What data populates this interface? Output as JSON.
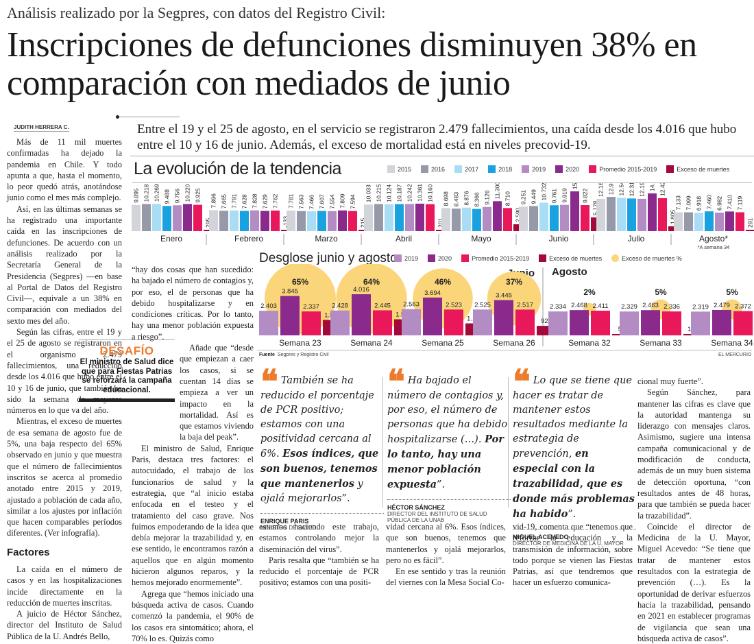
{
  "kicker": "Análisis realizado por la Segpres, con datos del Registro Civil:",
  "headline": "Inscripciones de defunciones disminuyen 38% en comparación con mediados de junio",
  "byline": "JUDITH HERRERA C.",
  "lead": "Entre el 19 y el 25 de agosto, en el servicio se registraron 2.479 fallecimientos, una caída desde los 4.016 que hubo entre el 10 y 16 de junio. Además, el exceso de mortalidad está en niveles precovid-19.",
  "colors": {
    "2015": "#d3d4da",
    "2016": "#9599a8",
    "2017": "#a9ddf5",
    "2018": "#1aa2e0",
    "2019": "#b48cc4",
    "2020": "#8a2a8c",
    "promedio": "#e8185a",
    "exceso": "#a3093a",
    "exceso_pct": "#fbd57a",
    "quote_mark": "#ee7a2b",
    "desafio": "#ee7a2b"
  },
  "body": {
    "col1": [
      "Más de 11 mil muertes confirmadas ha dejado la pandemia en Chile. Y todo apunta a que, hasta el momento, lo peor quedó atrás, anotándose junio como el mes más complejo.",
      "Así, en las últimas semanas se ha registrado una importante caída en las inscripciones de defunciones. De acuerdo con un análisis realizado por la Secretaría General de la Presidencia (Segpres) —en base al Portal de Datos del Registro Civil—, equivale a un 38% en comparación con mediados del sexto mes del año.",
      "Según las cifras, entre el 19 y el 25 de agosto se registraron en el organismo 2.479 fallecimientos, una reducción desde los 4.016 que hubo entre el 10 y 16 de junio, que también ha sido la semana de mayores números en lo que va del año.",
      "Mientras, el exceso de muertes de esa semana de agosto fue de 5%, una baja respecto del 65% observado en junio y que muestra que el número de fallecimientos inscritos se acerca al promedio anotado entre 2015 y 2019, ajustado a población de cada año, similar a los ajustes por inflación que hacen comparables períodos diferentes. (Ver infografía)."
    ],
    "subhead": "Factores",
    "col1b": [
      "La caída en el número de casos y en las hospitalizaciones incide directamente en la reducción de muertes inscritas.",
      "A juicio de Héctor Sánchez, director del Instituto de Salud Pública de la U. Andrés Bello,"
    ],
    "col2": [
      "“hay dos cosas que han sucedido: ha bajado el número de contagios y, por eso, el de personas que ha debido hospitalizarse y en condiciones críticas. Por lo tanto, hay una menor población expuesta a riesgo”.",
      "Añade que “desde que empiezan a caer los casos, si se cuentan 14 días se empieza a ver un impacto en la mortalidad. Así es que estamos viviendo la baja del peak”.",
      "El ministro de Salud, Enrique Paris, destaca tres factores: el autocuidado, el trabajo de los funcionarios de salud y la estrategia, que “al inicio estaba enfocada en el testeo y el tratamiento del caso grave. Nos fuimos empoderando de la idea que debía mejorar la trazabilidad y, en ese sentido, le encontramos razón a aquellos que en algún momento hicieron algunos reparos, y la hemos mejorado enormemente”.",
      "Agrega que “hemos iniciado una búsqueda activa de casos. Cuando comenzó la pandemia, el 90% de los casos era sintomático; ahora, el 70% lo es. Quizás como"
    ],
    "col3": [
      "estamos haciendo este trabajo, estamos controlando mejor la diseminación del virus”.",
      "Paris resalta que “también se ha reducido el porcentaje de PCR positivo; estamos con una positi-"
    ],
    "col4": [
      "vidad cercana al 6%. Esos índices, que son buenos, tenemos que mantenerlos y ojalá mejorarlos, pero no es fácil”.",
      "En ese sentido y tras la reunión del viernes con la Mesa Social Co-"
    ],
    "col5": [
      "vid-19, comenta que “tenemos que reforzar la educación y la transmisión de información, sobre todo porque se vienen las Fiestas Patrias, así que tendremos que hacer un esfuerzo comunica-"
    ],
    "col6": [
      "cional muy fuerte”.",
      "Según Sánchez, para mantener las cifras es clave que la autoridad mantenga su liderazgo con mensajes claros. Asimismo, sugiere una intensa campaña comunicacional y de modificación de conducta, además de un muy buen sistema de detección oportuna, “con resultados antes de 48 horas, para que también se pueda hacer la trazabilidad”.",
      "Coincide el director de Medicina de la U. Mayor, Miguel Acevedo: “Se tiene que tratar de mantener estos resultados con la estrategia de prevención (…). Es la oportunidad de derivar esfuerzos hacia la trazabilidad, pensando en 2021 en establecer programas de vigilancia que sean una búsqueda activa de casos”."
    ]
  },
  "desafio": {
    "title": "DESAFÍO",
    "text": "El ministro de Salud dice que para Fiestas Patrias se reforzará la campaña educacional."
  },
  "quotes": [
    {
      "pre": "También se ha reducido el porcentaje de PCR positivo; estamos con una positividad cercana al 6%. ",
      "bold": "Esos índices, que son buenos, tenemos que mantenerlos",
      "post": " y ojalá mejorarlos”.",
      "name": "ENRIQUE PARIS",
      "role": "MINISTRO DE SALUD"
    },
    {
      "pre": "Ha bajado el número de contagios y, por eso, el número de personas que ha debido hospitalizarse (…). ",
      "bold": "Por lo tanto, hay una menor población expuesta",
      "post": "”.",
      "name": "HÉCTOR SÁNCHEZ",
      "role": "DIRECTOR DEL INSTITUTO DE SALUD PÚBLICA DE LA UNAB"
    },
    {
      "pre": "Lo que se tiene que hacer es tratar de mantener estos resultados mediante la estrategia de prevención, ",
      "bold": "en especial con la trazabilidad, que es donde más problemas ha habido",
      "post": "”.",
      "name": "MIGUEL ACEVEDO",
      "role": "DIRECTOR DE MEDICINA DE LA U. MAYOR"
    }
  ],
  "infographic": {
    "source_label": "Fuente",
    "source": "Segpres y Registro Civil",
    "credit": "EL MERCURIO"
  },
  "chart_data": [
    {
      "type": "bar",
      "title": "La evolución de la tendencia",
      "categories": [
        "Enero",
        "Febrero",
        "Marzo",
        "Abril",
        "Mayo",
        "Junio",
        "Julio",
        "Agosto*"
      ],
      "note": "*A semana 34",
      "legend": [
        "2015",
        "2016",
        "2017",
        "2018",
        "2019",
        "2020",
        "Promedio 2015-2019",
        "Exceso de muertes"
      ],
      "series": [
        {
          "name": "2015",
          "key": "2015",
          "values": [
            9895,
            7896,
            7781,
            10033,
            8698,
            9251,
            12169,
            7133
          ],
          "labels": [
            "9.895",
            "7.896",
            "7.781",
            "10.033",
            "8.698",
            "9.251",
            "12.169",
            "7.133"
          ]
        },
        {
          "name": "2016",
          "key": "2016",
          "values": [
            10218,
            7665,
            7563,
            10215,
            8483,
            9449,
            12909,
            7099
          ],
          "labels": [
            "10.218",
            "7.665",
            "7.563",
            "10.215",
            "8.483",
            "9.449",
            "12.909",
            "7.099"
          ]
        },
        {
          "name": "2017",
          "key": "2017",
          "values": [
            10269,
            7791,
            7466,
            10124,
            8876,
            10732,
            12549,
            6918
          ],
          "labels": [
            "10.269",
            "7.791",
            "7.466",
            "10.124",
            "8.876",
            "10.732",
            "12.549",
            "6.918"
          ]
        },
        {
          "name": "2018",
          "key": "2018",
          "values": [
            9488,
            7628,
            7607,
            10187,
            8366,
            9761,
            12313,
            7460
          ],
          "labels": [
            "9.488",
            "7.628",
            "7.607",
            "10.187",
            "8.366",
            "9.761",
            "12.313",
            "7.460"
          ]
        },
        {
          "name": "2019",
          "key": "2019",
          "values": [
            9756,
            7828,
            7554,
            10242,
            9126,
            9919,
            12193,
            6982
          ],
          "labels": [
            "9.756",
            "7.828",
            "7.554",
            "10.242",
            "9.126",
            "9.919",
            "12.193",
            "6.982"
          ]
        },
        {
          "name": "2020",
          "key": "2020",
          "values": [
            10220,
            7629,
            7809,
            10361,
            11300,
            15000,
            14232,
            7410
          ],
          "labels": [
            "10.220",
            "7.629",
            "7.809",
            "10.361",
            "11.300",
            "15.000",
            "14.232",
            "7.410"
          ]
        },
        {
          "name": "Promedio 2015-2019",
          "key": "promedio",
          "values": [
            9925,
            7762,
            7594,
            10160,
            8710,
            9822,
            12427,
            7119
          ],
          "labels": [
            "9.925",
            "7.762",
            "7.594",
            "10.160",
            "8.710",
            "9.822",
            "12.427",
            "7.119"
          ]
        },
        {
          "name": "Exceso de muertes",
          "key": "exceso",
          "values": [
            295,
            -133,
            215,
            201,
            2590,
            5178,
            1805,
            291
          ],
          "labels": [
            "295",
            "-133",
            "215",
            "201",
            "2.590",
            "5.178",
            "1.805",
            "291"
          ]
        }
      ]
    },
    {
      "type": "bar",
      "title": "Desglose junio y agosto",
      "groups": [
        "Junio",
        "Agosto"
      ],
      "categories": [
        "Semana 23",
        "Semana 24",
        "Semana 25",
        "Semana 26",
        "Semana 32",
        "Semana 33",
        "Semana 34"
      ],
      "legend": [
        "2019",
        "2020",
        "Promedio 2015-2019",
        "Exceso de muertes",
        "Exceso de muertes %"
      ],
      "series": [
        {
          "name": "2019",
          "key": "2019",
          "values": [
            2403,
            2428,
            2563,
            2525,
            2334,
            2329,
            2319
          ],
          "labels": [
            "2.403",
            "2.428",
            "2.563",
            "2.525",
            "2.334",
            "2.329",
            "2.319"
          ]
        },
        {
          "name": "2020",
          "key": "2020",
          "values": [
            3845,
            4016,
            3694,
            3445,
            2468,
            2463,
            2479
          ],
          "labels": [
            "3.845",
            "4.016",
            "3.694",
            "3.445",
            "2.468",
            "2.463",
            "2.479"
          ]
        },
        {
          "name": "Promedio 2015-2019",
          "key": "promedio",
          "values": [
            2337,
            2445,
            2523,
            2517,
            2411,
            2336,
            2372
          ],
          "labels": [
            "2.337",
            "2.445",
            "2.523",
            "2.517",
            "2.411",
            "2.336",
            "2.372"
          ]
        },
        {
          "name": "Exceso de muertes",
          "key": "exceso",
          "values": [
            1508,
            1571,
            1171,
            928,
            57,
            127,
            107
          ],
          "labels": [
            "1.508",
            "1.571",
            "1.171",
            "928",
            "57",
            "127",
            "107"
          ]
        },
        {
          "name": "Exceso de muertes %",
          "key": "exceso_pct",
          "values": [
            65,
            64,
            46,
            37,
            2,
            5,
            5
          ],
          "labels": [
            "65%",
            "64%",
            "46%",
            "37%",
            "2%",
            "5%",
            "5%"
          ]
        }
      ]
    }
  ]
}
